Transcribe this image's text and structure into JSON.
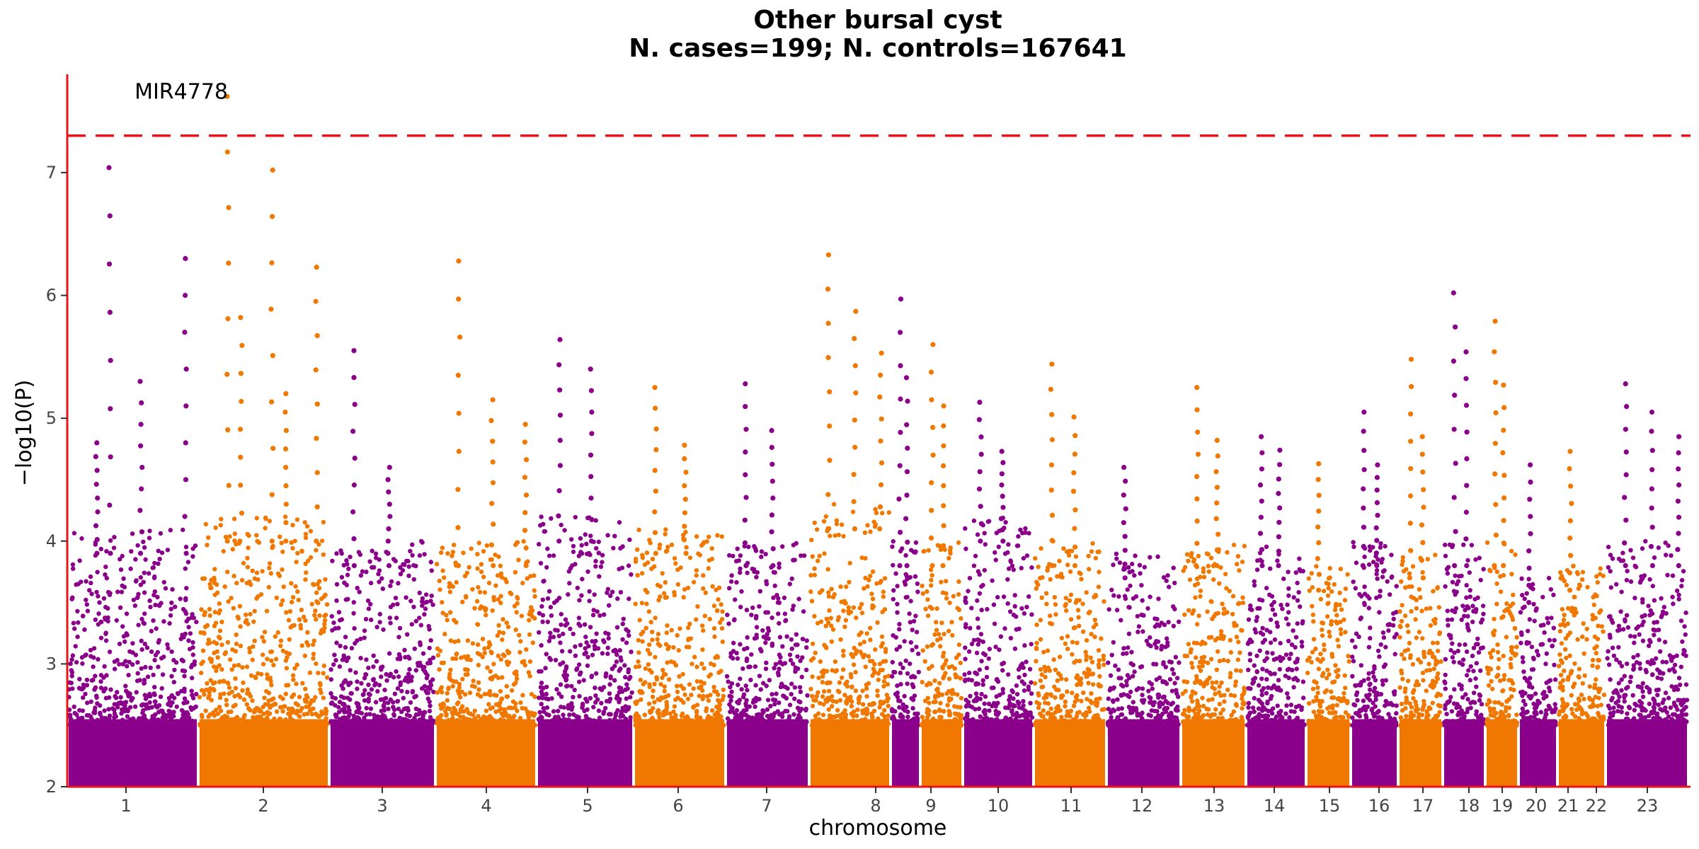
{
  "chart_data": {
    "type": "scatter",
    "title": "Other bursal cyst",
    "subtitle": "N. cases=199; N. controls=167641",
    "xlabel": "chromosome",
    "ylabel": "−log10(P)",
    "ylim": [
      2,
      7.8
    ],
    "y_ticks": [
      2,
      3,
      4,
      5,
      6,
      7
    ],
    "grid": false,
    "legend": "none",
    "significance_line": {
      "y": 7.3,
      "style": "dashed",
      "color": "#e8141b"
    },
    "colors": {
      "odd_chromosomes": "#8b008b",
      "even_chromosomes": "#f07800",
      "axis": "#e8141b"
    },
    "annotations": [
      {
        "label": "MIR4778",
        "chromosome": "2",
        "y": 7.62
      }
    ],
    "chromosomes": [
      {
        "label": "1",
        "tick_label": "1",
        "base_max": 4.1,
        "peaks": [
          {
            "y": 4.8
          },
          {
            "y": 5.3
          },
          {
            "y": 6.3
          },
          {
            "y": 7.04
          }
        ]
      },
      {
        "label": "2",
        "tick_label": "2",
        "base_max": 4.2,
        "peaks": [
          {
            "y": 7.62
          },
          {
            "y": 7.02
          },
          {
            "y": 6.23
          },
          {
            "y": 5.82
          },
          {
            "y": 5.2
          }
        ]
      },
      {
        "label": "3",
        "tick_label": "3",
        "base_max": 4.0,
        "peaks": [
          {
            "y": 5.55
          },
          {
            "y": 4.6
          }
        ]
      },
      {
        "label": "4",
        "tick_label": "4",
        "base_max": 4.0,
        "peaks": [
          {
            "y": 6.28
          },
          {
            "y": 5.15
          },
          {
            "y": 4.95
          }
        ]
      },
      {
        "label": "5",
        "tick_label": "5",
        "base_max": 4.2,
        "peaks": [
          {
            "y": 5.64
          },
          {
            "y": 5.4
          }
        ]
      },
      {
        "label": "6",
        "tick_label": "6",
        "base_max": 4.1,
        "peaks": [
          {
            "y": 5.25
          },
          {
            "y": 4.78
          }
        ]
      },
      {
        "label": "7",
        "tick_label": "7",
        "base_max": 4.0,
        "peaks": [
          {
            "y": 5.28
          },
          {
            "y": 4.9
          }
        ]
      },
      {
        "label": "8",
        "tick_label": "8",
        "base_max": 4.3,
        "peaks": [
          {
            "y": 6.33
          },
          {
            "y": 5.87
          },
          {
            "y": 5.53
          }
        ]
      },
      {
        "label": "9",
        "tick_label": "9",
        "base_max": 4.0,
        "peaks": [
          {
            "y": 5.97
          },
          {
            "y": 5.33
          }
        ]
      },
      {
        "label": "10",
        "tick_label": "10",
        "base_max": 4.0,
        "peaks": [
          {
            "y": 5.6
          },
          {
            "y": 5.1
          }
        ]
      },
      {
        "label": "11",
        "tick_label": "11",
        "base_max": 4.2,
        "peaks": [
          {
            "y": 5.13
          },
          {
            "y": 4.73
          }
        ]
      },
      {
        "label": "12",
        "tick_label": "12",
        "base_max": 4.0,
        "peaks": [
          {
            "y": 5.44
          },
          {
            "y": 5.01
          }
        ]
      },
      {
        "label": "13",
        "tick_label": "13",
        "base_max": 3.9,
        "peaks": [
          {
            "y": 4.6
          }
        ]
      },
      {
        "label": "14",
        "tick_label": "14",
        "base_max": 4.0,
        "peaks": [
          {
            "y": 5.25
          },
          {
            "y": 4.82
          }
        ]
      },
      {
        "label": "15",
        "tick_label": "15",
        "base_max": 4.0,
        "peaks": [
          {
            "y": 4.85
          },
          {
            "y": 4.74
          }
        ]
      },
      {
        "label": "16",
        "tick_label": "16",
        "base_max": 3.8,
        "peaks": [
          {
            "y": 4.63
          }
        ]
      },
      {
        "label": "17",
        "tick_label": "17",
        "base_max": 4.0,
        "peaks": [
          {
            "y": 5.05
          },
          {
            "y": 4.62
          }
        ]
      },
      {
        "label": "18",
        "tick_label": "18",
        "base_max": 3.9,
        "peaks": [
          {
            "y": 5.48
          },
          {
            "y": 4.85
          }
        ]
      },
      {
        "label": "19",
        "tick_label": "19",
        "base_max": 4.0,
        "peaks": [
          {
            "y": 6.02
          },
          {
            "y": 5.54
          }
        ]
      },
      {
        "label": "20",
        "tick_label": "20",
        "base_max": 4.0,
        "peaks": [
          {
            "y": 5.79
          },
          {
            "y": 5.27
          }
        ]
      },
      {
        "label": "21",
        "tick_label": "21",
        "base_max": 3.7,
        "peaks": [
          {
            "y": 4.62
          }
        ]
      },
      {
        "label": "22",
        "tick_label": "22",
        "base_max": 3.8,
        "peaks": [
          {
            "y": 4.73
          }
        ]
      },
      {
        "label": "23",
        "tick_label": "23",
        "base_max": 4.0,
        "peaks": [
          {
            "y": 5.28
          },
          {
            "y": 5.05
          },
          {
            "y": 4.85
          }
        ]
      }
    ]
  }
}
